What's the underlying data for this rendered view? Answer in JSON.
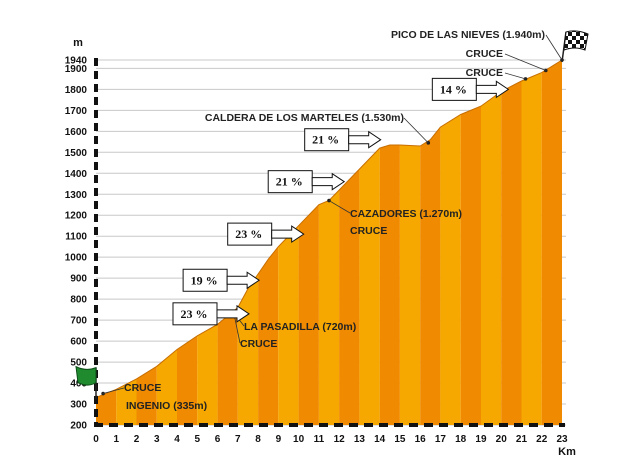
{
  "chart_data": {
    "type": "area",
    "title": "",
    "xlabel": "Km",
    "ylabel": "m",
    "xlim": [
      0,
      23
    ],
    "ylim": [
      200,
      1940
    ],
    "x_ticks": [
      0,
      1,
      2,
      3,
      4,
      5,
      6,
      7,
      8,
      9,
      10,
      11,
      12,
      13,
      14,
      15,
      16,
      17,
      18,
      19,
      20,
      21,
      22,
      23
    ],
    "y_ticks": [
      200,
      300,
      400,
      500,
      600,
      700,
      800,
      900,
      1000,
      1100,
      1200,
      1300,
      1400,
      1500,
      1600,
      1700,
      1800,
      1900,
      1940
    ],
    "grid": "horizontal",
    "colors": {
      "fill_a": "#f08a00",
      "fill_b": "#f6a800",
      "grid": "#c8c8c8",
      "axis": "#111111",
      "marker": "#222222",
      "start_flag": "#1f8a2e"
    },
    "series": [
      {
        "x": [
          0,
          0.1,
          1,
          2,
          3,
          4,
          5,
          6,
          6.5,
          7,
          7.5,
          8,
          8.5,
          9,
          10,
          11,
          11.5,
          12,
          13,
          14,
          14.5,
          15,
          16,
          16.5,
          17,
          18,
          19,
          20,
          21,
          22,
          22.5,
          23
        ],
        "y": [
          340,
          335,
          370,
          420,
          480,
          560,
          625,
          680,
          720,
          760,
          850,
          920,
          990,
          1050,
          1150,
          1250,
          1270,
          1320,
          1420,
          1520,
          1535,
          1535,
          1530,
          1560,
          1620,
          1680,
          1720,
          1790,
          1840,
          1880,
          1910,
          1940
        ]
      }
    ],
    "markers": [
      {
        "x": 0.35,
        "y": 350,
        "labels": [
          "CRUCE",
          "INGENIO (335m)"
        ]
      },
      {
        "x": 6.8,
        "y": 735,
        "labels": [
          "LA PASADILLA (720m)",
          "CRUCE"
        ]
      },
      {
        "x": 11.5,
        "y": 1270,
        "labels": [
          "CAZADORES (1.270m)",
          "CRUCE"
        ]
      },
      {
        "x": 16.4,
        "y": 1545,
        "labels": [
          "CALDERA DE LOS MARTELES (1.530m)"
        ]
      },
      {
        "x": 21.2,
        "y": 1850,
        "labels": [
          "CRUCE"
        ]
      },
      {
        "x": 22.2,
        "y": 1890,
        "labels": [
          "CRUCE"
        ]
      },
      {
        "x": 23,
        "y": 1940,
        "labels": [
          "PICO DE LAS NIEVES (1.940m)"
        ]
      }
    ],
    "gradients": [
      {
        "label": "23 %",
        "x": 3.8,
        "y": 730
      },
      {
        "label": "19 %",
        "x": 4.3,
        "y": 890
      },
      {
        "label": "23 %",
        "x": 6.5,
        "y": 1110
      },
      {
        "label": "21 %",
        "x": 8.5,
        "y": 1360
      },
      {
        "label": "21 %",
        "x": 10.3,
        "y": 1560
      },
      {
        "label": "14 %",
        "x": 16.6,
        "y": 1800
      }
    ]
  }
}
